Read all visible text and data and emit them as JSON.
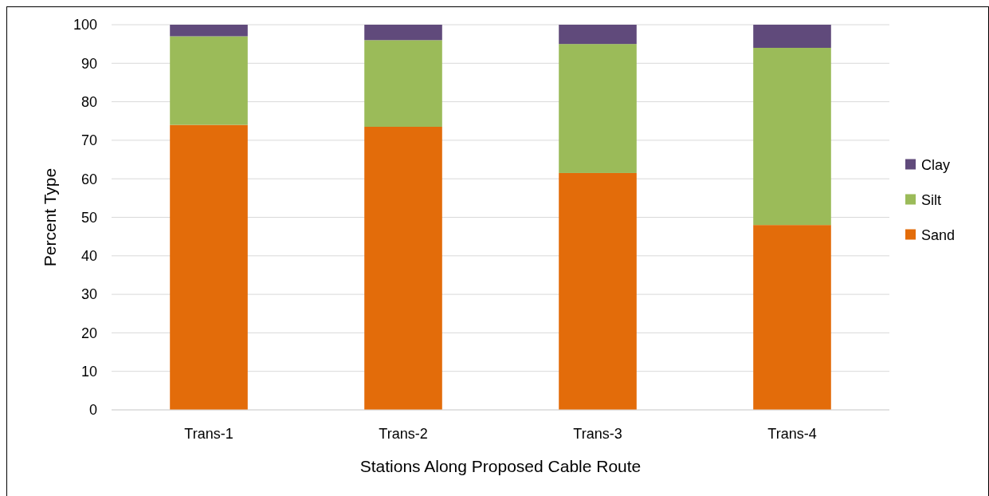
{
  "chart_data": {
    "type": "bar",
    "stacked": true,
    "xlabel": "Stations Along Proposed Cable Route",
    "ylabel": "Percent Type",
    "categories": [
      "Trans-1",
      "Trans-2",
      "Trans-3",
      "Trans-4"
    ],
    "series": [
      {
        "name": "Sand",
        "color": "#e36c0a",
        "values": [
          74,
          73.5,
          61.5,
          48
        ]
      },
      {
        "name": "Silt",
        "color": "#9bbb59",
        "values": [
          23,
          22.5,
          33.5,
          46
        ]
      },
      {
        "name": "Clay",
        "color": "#604a7b",
        "values": [
          3,
          4,
          5,
          6
        ]
      }
    ],
    "ylim": [
      0,
      100
    ],
    "yticks": [
      0,
      10,
      20,
      30,
      40,
      50,
      60,
      70,
      80,
      90,
      100
    ],
    "grid": "y",
    "legend": "right"
  }
}
